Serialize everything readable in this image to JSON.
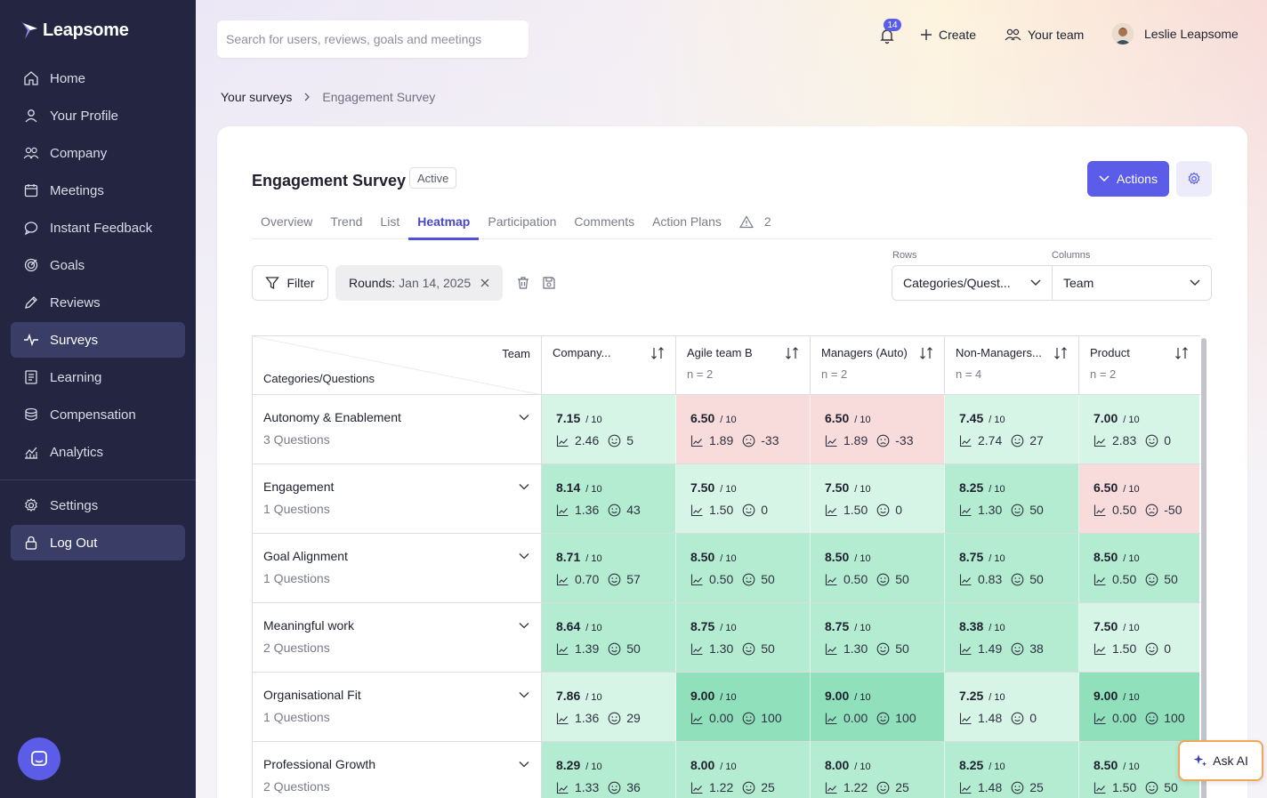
{
  "app": {
    "brand": "Leapsome",
    "colors": {
      "accent": "#5b5ce8",
      "sidebar": "#232541",
      "green_light": "#d7f5e6",
      "green_mid": "#b3ecd0",
      "green_dark": "#8fe0bb",
      "red_light": "#f8dcdc"
    }
  },
  "sidebar": {
    "items": [
      {
        "label": "Home",
        "icon": "home-icon"
      },
      {
        "label": "Your Profile",
        "icon": "user-icon"
      },
      {
        "label": "Company",
        "icon": "users-icon"
      },
      {
        "label": "Meetings",
        "icon": "calendar-icon"
      },
      {
        "label": "Instant Feedback",
        "icon": "chat-icon"
      },
      {
        "label": "Goals",
        "icon": "target-icon"
      },
      {
        "label": "Reviews",
        "icon": "pen-icon"
      },
      {
        "label": "Surveys",
        "icon": "pulse-icon",
        "active": true
      },
      {
        "label": "Learning",
        "icon": "book-icon"
      },
      {
        "label": "Compensation",
        "icon": "coins-icon"
      },
      {
        "label": "Analytics",
        "icon": "chart-icon"
      }
    ],
    "bottom": [
      {
        "label": "Settings",
        "icon": "gear-icon"
      },
      {
        "label": "Log Out",
        "icon": "lock-icon",
        "active": true
      }
    ]
  },
  "topbar": {
    "search_placeholder": "Search for users, reviews, goals and meetings",
    "notifications_count": "14",
    "create_label": "Create",
    "team_label": "Your team",
    "user_name": "Leslie Leapsome"
  },
  "breadcrumb": {
    "parent": "Your surveys",
    "current": "Engagement Survey"
  },
  "survey": {
    "title": "Engagement Survey",
    "status": "Active",
    "actions_label": "Actions",
    "tabs": [
      "Overview",
      "Trend",
      "List",
      "Heatmap",
      "Participation",
      "Comments",
      "Action Plans"
    ],
    "active_tab": "Heatmap",
    "warnings_count": "2"
  },
  "filters": {
    "filter_label": "Filter",
    "rounds_label": "Rounds:",
    "rounds_value": "Jan 14, 2025",
    "rows_label": "Rows",
    "rows_value": "Categories/Quest...",
    "columns_label": "Columns",
    "columns_value": "Team"
  },
  "heatmap": {
    "corner_top": "Team",
    "corner_bottom": "Categories/Questions",
    "columns": [
      {
        "name": "Company...",
        "n": ""
      },
      {
        "name": "Agile team B",
        "n": "n = 2"
      },
      {
        "name": "Managers (Auto)",
        "n": "n = 2"
      },
      {
        "name": "Non-Managers...",
        "n": "n = 4"
      },
      {
        "name": "Product",
        "n": "n = 2"
      }
    ],
    "scale": "/ 10",
    "rows": [
      {
        "title": "Autonomy & Enablement",
        "sub": "3 Questions",
        "cells": [
          {
            "score": "7.15",
            "sd": "2.46",
            "nps": "5",
            "tone": "light"
          },
          {
            "score": "6.50",
            "sd": "1.89",
            "nps": "-33",
            "tone": "red"
          },
          {
            "score": "6.50",
            "sd": "1.89",
            "nps": "-33",
            "tone": "red"
          },
          {
            "score": "7.45",
            "sd": "2.74",
            "nps": "27",
            "tone": "light"
          },
          {
            "score": "7.00",
            "sd": "2.83",
            "nps": "0",
            "tone": "light"
          }
        ]
      },
      {
        "title": "Engagement",
        "sub": "1 Questions",
        "cells": [
          {
            "score": "8.14",
            "sd": "1.36",
            "nps": "43",
            "tone": "mid"
          },
          {
            "score": "7.50",
            "sd": "1.50",
            "nps": "0",
            "tone": "light"
          },
          {
            "score": "7.50",
            "sd": "1.50",
            "nps": "0",
            "tone": "light"
          },
          {
            "score": "8.25",
            "sd": "1.30",
            "nps": "50",
            "tone": "mid"
          },
          {
            "score": "6.50",
            "sd": "0.50",
            "nps": "-50",
            "tone": "red"
          }
        ]
      },
      {
        "title": "Goal Alignment",
        "sub": "1 Questions",
        "cells": [
          {
            "score": "8.71",
            "sd": "0.70",
            "nps": "57",
            "tone": "mid"
          },
          {
            "score": "8.50",
            "sd": "0.50",
            "nps": "50",
            "tone": "mid"
          },
          {
            "score": "8.50",
            "sd": "0.50",
            "nps": "50",
            "tone": "mid"
          },
          {
            "score": "8.75",
            "sd": "0.83",
            "nps": "50",
            "tone": "mid"
          },
          {
            "score": "8.50",
            "sd": "0.50",
            "nps": "50",
            "tone": "mid"
          }
        ]
      },
      {
        "title": "Meaningful work",
        "sub": "2 Questions",
        "cells": [
          {
            "score": "8.64",
            "sd": "1.39",
            "nps": "50",
            "tone": "mid"
          },
          {
            "score": "8.75",
            "sd": "1.30",
            "nps": "50",
            "tone": "mid"
          },
          {
            "score": "8.75",
            "sd": "1.30",
            "nps": "50",
            "tone": "mid"
          },
          {
            "score": "8.38",
            "sd": "1.49",
            "nps": "38",
            "tone": "mid"
          },
          {
            "score": "7.50",
            "sd": "1.50",
            "nps": "0",
            "tone": "light"
          }
        ]
      },
      {
        "title": "Organisational Fit",
        "sub": "1 Questions",
        "cells": [
          {
            "score": "7.86",
            "sd": "1.36",
            "nps": "29",
            "tone": "light"
          },
          {
            "score": "9.00",
            "sd": "0.00",
            "nps": "100",
            "tone": "dark"
          },
          {
            "score": "9.00",
            "sd": "0.00",
            "nps": "100",
            "tone": "dark"
          },
          {
            "score": "7.25",
            "sd": "1.48",
            "nps": "0",
            "tone": "light"
          },
          {
            "score": "9.00",
            "sd": "0.00",
            "nps": "100",
            "tone": "dark"
          }
        ]
      },
      {
        "title": "Professional Growth",
        "sub": "2 Questions",
        "cells": [
          {
            "score": "8.29",
            "sd": "1.33",
            "nps": "36",
            "tone": "mid"
          },
          {
            "score": "8.00",
            "sd": "1.22",
            "nps": "25",
            "tone": "mid"
          },
          {
            "score": "8.00",
            "sd": "1.22",
            "nps": "25",
            "tone": "mid"
          },
          {
            "score": "8.25",
            "sd": "1.48",
            "nps": "25",
            "tone": "mid"
          },
          {
            "score": "8.50",
            "sd": "1.50",
            "nps": "50",
            "tone": "mid"
          }
        ]
      }
    ]
  },
  "ask_ai_label": "Ask AI"
}
